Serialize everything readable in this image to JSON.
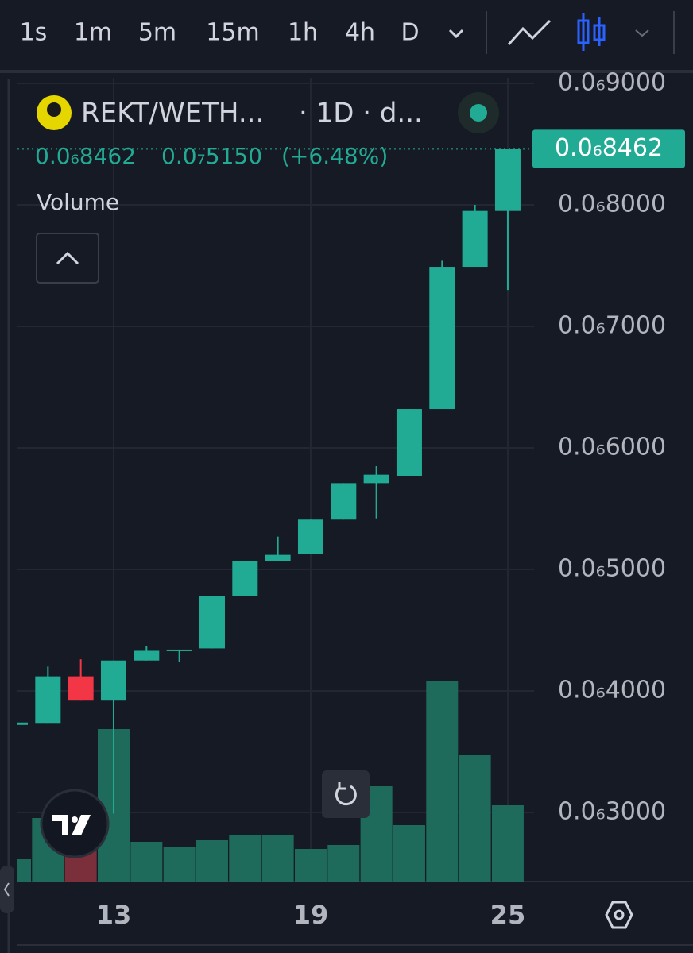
{
  "toolbar": {
    "intervals": [
      "1s",
      "1m",
      "5m",
      "15m",
      "1h",
      "4h",
      "D"
    ],
    "active": 6
  },
  "chart_data": {
    "type": "candlestick",
    "legend": {
      "symbol": "REKT/WETH...",
      "meta": "· 1D · d...",
      "last": "0.0₆8462",
      "change": "0.0₇5150",
      "change_pct": "(+6.48%)",
      "volume_label": "Volume"
    },
    "categories": [
      null,
      null,
      null,
      "13",
      null,
      null,
      null,
      null,
      null,
      "19",
      null,
      null,
      null,
      null,
      null,
      "25"
    ],
    "open": [
      3.72e-07,
      3.73e-07,
      4.12e-07,
      3.92e-07,
      4.25e-07,
      4.33e-07,
      4.35e-07,
      4.78e-07,
      5.07e-07,
      5.13e-07,
      5.41e-07,
      5.71e-07,
      5.77e-07,
      6.32e-07,
      7.49e-07,
      7.95e-07
    ],
    "high": [
      3.74e-07,
      4.2e-07,
      4.26e-07,
      4.25e-07,
      4.37e-07,
      4.34e-07,
      4.78e-07,
      5.07e-07,
      5.27e-07,
      5.41e-07,
      5.71e-07,
      5.85e-07,
      6.32e-07,
      7.54e-07,
      8e-07,
      8.462e-07
    ],
    "low": [
      3.72e-07,
      3.73e-07,
      3.92e-07,
      2.99e-07,
      4.25e-07,
      4.24e-07,
      4.35e-07,
      4.78e-07,
      5.07e-07,
      5.13e-07,
      5.41e-07,
      5.42e-07,
      5.77e-07,
      6.32e-07,
      7.49e-07,
      7.3e-07
    ],
    "close": [
      3.74e-07,
      4.12e-07,
      3.92e-07,
      4.25e-07,
      4.33e-07,
      4.34e-07,
      4.78e-07,
      5.07e-07,
      5.12e-07,
      5.41e-07,
      5.71e-07,
      5.78e-07,
      6.32e-07,
      7.49e-07,
      7.95e-07,
      8.462e-07
    ],
    "volume": [
      28,
      80,
      40,
      192,
      50,
      43,
      52,
      58,
      58,
      41,
      46,
      120,
      71,
      252,
      159,
      96
    ],
    "volume_ylim": [
      0,
      300
    ],
    "ylim": [
      2.431e-07,
      9.046e-07
    ],
    "yticks": [
      {
        "value": 3e-07,
        "label": "0.0₆3000"
      },
      {
        "value": 4e-07,
        "label": "0.0₆4000"
      },
      {
        "value": 5e-07,
        "label": "0.0₆5000"
      },
      {
        "value": 6e-07,
        "label": "0.0₆6000"
      },
      {
        "value": 7e-07,
        "label": "0.0₆7000"
      },
      {
        "value": 8e-07,
        "label": "0.0₆8000"
      },
      {
        "value": 9e-07,
        "label": "0.0₆9000"
      }
    ],
    "last_price": {
      "value": 8.462e-07,
      "label": "0.0₆8462"
    },
    "up_color": "#22ab94",
    "down_color": "#f23645",
    "volume_up_color": "#1f6b5b",
    "volume_down_color": "#7a2f3a",
    "grid": true
  }
}
